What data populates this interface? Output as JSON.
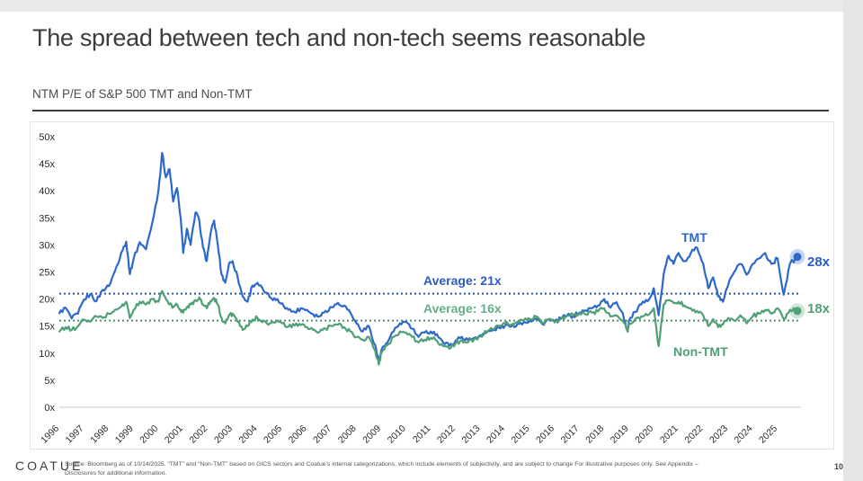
{
  "slide": {
    "title": "The spread between tech and non-tech seems reasonable",
    "subtitle": "NTM P/E of S&P 500 TMT and Non-TMT",
    "logo": "COATUE",
    "page_number": "10",
    "source_line1": "Source: Bloomberg as of 10/14/2025. “TMT” and “Non-TMT” based on GICS sectors and Coatue’s internal categorizations, which include elements of subjectivity, and are subject to change For illustrative purposes only. See Appendix –",
    "source_line2": "Disclosures for additional information."
  },
  "chart_data": {
    "type": "line",
    "title": "NTM P/E of S&P 500 TMT and Non-TMT",
    "grid": false,
    "x_axis": {
      "ticks": [
        1996,
        1997,
        1998,
        1999,
        2000,
        2001,
        2002,
        2003,
        2004,
        2005,
        2006,
        2007,
        2008,
        2009,
        2010,
        2011,
        2012,
        2013,
        2014,
        2015,
        2016,
        2017,
        2018,
        2019,
        2020,
        2021,
        2022,
        2023,
        2024,
        2025
      ],
      "min": 1996,
      "max": 2025.83
    },
    "y_axis": {
      "ticks": [
        "0x",
        "5x",
        "10x",
        "15x",
        "20x",
        "25x",
        "30x",
        "35x",
        "40x",
        "45x",
        "50x"
      ],
      "min": 0,
      "max": 50
    },
    "baseline_color": "#c9c9c9",
    "axis_text_color": "#2b2b2b",
    "series": [
      {
        "name": "TMT",
        "color": "#2e68c8",
        "avg_line_color": "#2d57b0",
        "average": 21,
        "average_label": "Average: 21x",
        "end_label": "28x",
        "points": [
          [
            1996,
            17.4
          ],
          [
            1996.25,
            18.4
          ],
          [
            1996.5,
            16.4
          ],
          [
            1996.75,
            17.3
          ],
          [
            1997,
            19.9
          ],
          [
            1997.25,
            20.9
          ],
          [
            1997.5,
            19.6
          ],
          [
            1997.75,
            21.7
          ],
          [
            1998,
            22.4
          ],
          [
            1998.25,
            25.2
          ],
          [
            1998.5,
            28.6
          ],
          [
            1998.7,
            30.6
          ],
          [
            1998.85,
            24.6
          ],
          [
            1999,
            27.5
          ],
          [
            1999.25,
            30.5
          ],
          [
            1999.5,
            29.2
          ],
          [
            1999.75,
            34
          ],
          [
            2000,
            40
          ],
          [
            2000.15,
            47
          ],
          [
            2000.3,
            42.5
          ],
          [
            2000.45,
            44
          ],
          [
            2000.6,
            38
          ],
          [
            2000.75,
            40.5
          ],
          [
            2000.9,
            35
          ],
          [
            2001,
            28.5
          ],
          [
            2001.15,
            33
          ],
          [
            2001.3,
            30
          ],
          [
            2001.5,
            36
          ],
          [
            2001.65,
            34.5
          ],
          [
            2001.8,
            29.5
          ],
          [
            2001.95,
            27
          ],
          [
            2002.1,
            32
          ],
          [
            2002.25,
            34.5
          ],
          [
            2002.4,
            30
          ],
          [
            2002.55,
            24.5
          ],
          [
            2002.7,
            23
          ],
          [
            2002.85,
            26.5
          ],
          [
            2003,
            27
          ],
          [
            2003.2,
            24
          ],
          [
            2003.4,
            20.5
          ],
          [
            2003.6,
            19.5
          ],
          [
            2003.8,
            22.5
          ],
          [
            2004,
            23
          ],
          [
            2004.25,
            21.5
          ],
          [
            2004.5,
            20.3
          ],
          [
            2004.75,
            19.8
          ],
          [
            2005,
            19.2
          ],
          [
            2005.25,
            18
          ],
          [
            2005.5,
            17.6
          ],
          [
            2005.75,
            18.3
          ],
          [
            2006,
            18
          ],
          [
            2006.25,
            17.2
          ],
          [
            2006.5,
            16.8
          ],
          [
            2006.75,
            17.8
          ],
          [
            2007,
            18.5
          ],
          [
            2007.25,
            19.3
          ],
          [
            2007.5,
            18.8
          ],
          [
            2007.75,
            17.5
          ],
          [
            2008,
            15.5
          ],
          [
            2008.25,
            14
          ],
          [
            2008.5,
            15
          ],
          [
            2008.75,
            11.5
          ],
          [
            2008.9,
            8.4
          ],
          [
            2009,
            10.5
          ],
          [
            2009.25,
            12
          ],
          [
            2009.5,
            14
          ],
          [
            2009.75,
            15.5
          ],
          [
            2010,
            15.8
          ],
          [
            2010.25,
            14.5
          ],
          [
            2010.5,
            13
          ],
          [
            2010.75,
            13.8
          ],
          [
            2011,
            14
          ],
          [
            2011.25,
            13.5
          ],
          [
            2011.5,
            12
          ],
          [
            2011.75,
            11.4
          ],
          [
            2012,
            12.3
          ],
          [
            2012.25,
            13
          ],
          [
            2012.5,
            12.4
          ],
          [
            2012.75,
            12.8
          ],
          [
            2013,
            13.3
          ],
          [
            2013.25,
            13.8
          ],
          [
            2013.5,
            14.2
          ],
          [
            2013.75,
            14.7
          ],
          [
            2014,
            15.1
          ],
          [
            2014.25,
            14.9
          ],
          [
            2014.5,
            15.4
          ],
          [
            2014.75,
            15.7
          ],
          [
            2015,
            16
          ],
          [
            2015.25,
            16.4
          ],
          [
            2015.5,
            15.4
          ],
          [
            2015.75,
            16.2
          ],
          [
            2016,
            15.7
          ],
          [
            2016.25,
            16.4
          ],
          [
            2016.5,
            17
          ],
          [
            2016.75,
            16.8
          ],
          [
            2017,
            17.5
          ],
          [
            2017.25,
            17.9
          ],
          [
            2017.5,
            18.3
          ],
          [
            2017.75,
            18.8
          ],
          [
            2018,
            20
          ],
          [
            2018.25,
            18.4
          ],
          [
            2018.5,
            19.4
          ],
          [
            2018.75,
            17.4
          ],
          [
            2018.95,
            14
          ],
          [
            2019,
            16
          ],
          [
            2019.25,
            17.6
          ],
          [
            2019.5,
            19
          ],
          [
            2019.75,
            19.6
          ],
          [
            2020,
            22
          ],
          [
            2020.2,
            17
          ],
          [
            2020.4,
            24.5
          ],
          [
            2020.6,
            28
          ],
          [
            2020.8,
            26.5
          ],
          [
            2021,
            28.5
          ],
          [
            2021.25,
            27
          ],
          [
            2021.5,
            28.5
          ],
          [
            2021.75,
            29.5
          ],
          [
            2022,
            26.5
          ],
          [
            2022.2,
            22
          ],
          [
            2022.4,
            24
          ],
          [
            2022.6,
            20.5
          ],
          [
            2022.8,
            19.5
          ],
          [
            2023,
            22.5
          ],
          [
            2023.25,
            25
          ],
          [
            2023.5,
            26.5
          ],
          [
            2023.75,
            24.5
          ],
          [
            2024,
            26.5
          ],
          [
            2024.25,
            27.5
          ],
          [
            2024.5,
            28.5
          ],
          [
            2024.75,
            26.5
          ],
          [
            2025,
            27.5
          ],
          [
            2025.25,
            20.8
          ],
          [
            2025.5,
            26.5
          ],
          [
            2025.8,
            27.8
          ]
        ]
      },
      {
        "name": "Non-TMT",
        "color": "#4fa076",
        "avg_line_color": "#568f6d",
        "average": 16,
        "average_label": "Average: 16x",
        "end_label": "18x",
        "points": [
          [
            1996,
            14
          ],
          [
            1996.25,
            14.8
          ],
          [
            1996.5,
            14.3
          ],
          [
            1996.75,
            15
          ],
          [
            1997,
            16.2
          ],
          [
            1997.25,
            15.8
          ],
          [
            1997.5,
            16.8
          ],
          [
            1997.75,
            16.5
          ],
          [
            1998,
            17.3
          ],
          [
            1998.25,
            18
          ],
          [
            1998.5,
            18.6
          ],
          [
            1998.7,
            19.5
          ],
          [
            1998.85,
            16.5
          ],
          [
            1999,
            18
          ],
          [
            1999.25,
            19.5
          ],
          [
            1999.5,
            19
          ],
          [
            1999.75,
            20
          ],
          [
            2000,
            19.5
          ],
          [
            2000.15,
            21.5
          ],
          [
            2000.3,
            20
          ],
          [
            2000.45,
            19
          ],
          [
            2000.6,
            18.5
          ],
          [
            2000.75,
            19
          ],
          [
            2000.9,
            18
          ],
          [
            2001,
            17.5
          ],
          [
            2001.15,
            18.5
          ],
          [
            2001.3,
            19
          ],
          [
            2001.5,
            19.8
          ],
          [
            2001.65,
            20.3
          ],
          [
            2001.8,
            19
          ],
          [
            2001.95,
            18.3
          ],
          [
            2002.1,
            19.6
          ],
          [
            2002.25,
            20.2
          ],
          [
            2002.4,
            19
          ],
          [
            2002.55,
            16.5
          ],
          [
            2002.7,
            15.5
          ],
          [
            2002.85,
            17
          ],
          [
            2003,
            17.3
          ],
          [
            2003.2,
            15.8
          ],
          [
            2003.4,
            14.3
          ],
          [
            2003.6,
            15
          ],
          [
            2003.8,
            16.2
          ],
          [
            2004,
            16.5
          ],
          [
            2004.25,
            16
          ],
          [
            2004.5,
            15.5
          ],
          [
            2004.75,
            15.8
          ],
          [
            2005,
            15.5
          ],
          [
            2005.25,
            14.9
          ],
          [
            2005.5,
            15.1
          ],
          [
            2005.75,
            15.2
          ],
          [
            2006,
            14.8
          ],
          [
            2006.25,
            14.3
          ],
          [
            2006.5,
            13.9
          ],
          [
            2006.75,
            14.5
          ],
          [
            2007,
            15
          ],
          [
            2007.25,
            15.3
          ],
          [
            2007.5,
            14.8
          ],
          [
            2007.75,
            14
          ],
          [
            2008,
            13
          ],
          [
            2008.25,
            12.5
          ],
          [
            2008.5,
            13
          ],
          [
            2008.75,
            10.5
          ],
          [
            2008.9,
            7.9
          ],
          [
            2009,
            10
          ],
          [
            2009.25,
            11.5
          ],
          [
            2009.5,
            13
          ],
          [
            2009.75,
            14
          ],
          [
            2010,
            13.8
          ],
          [
            2010.25,
            13
          ],
          [
            2010.5,
            12
          ],
          [
            2010.75,
            12.5
          ],
          [
            2011,
            12.8
          ],
          [
            2011.25,
            12.3
          ],
          [
            2011.5,
            11.3
          ],
          [
            2011.75,
            10.8
          ],
          [
            2012,
            11.8
          ],
          [
            2012.25,
            12.4
          ],
          [
            2012.5,
            12
          ],
          [
            2012.75,
            12.6
          ],
          [
            2013,
            13.1
          ],
          [
            2013.25,
            13.9
          ],
          [
            2013.5,
            14.4
          ],
          [
            2013.75,
            15
          ],
          [
            2014,
            15.5
          ],
          [
            2014.25,
            15.3
          ],
          [
            2014.5,
            15.8
          ],
          [
            2014.75,
            16
          ],
          [
            2015,
            16.3
          ],
          [
            2015.25,
            16.8
          ],
          [
            2015.5,
            15.6
          ],
          [
            2015.75,
            16.3
          ],
          [
            2016,
            15.8
          ],
          [
            2016.25,
            16.3
          ],
          [
            2016.5,
            16.9
          ],
          [
            2016.75,
            17
          ],
          [
            2017,
            17.4
          ],
          [
            2017.25,
            17.2
          ],
          [
            2017.5,
            17.5
          ],
          [
            2017.75,
            17.7
          ],
          [
            2018,
            18.3
          ],
          [
            2018.25,
            16.8
          ],
          [
            2018.5,
            17
          ],
          [
            2018.75,
            16
          ],
          [
            2018.95,
            14.2
          ],
          [
            2019,
            15.5
          ],
          [
            2019.25,
            16.3
          ],
          [
            2019.5,
            16.8
          ],
          [
            2019.75,
            17
          ],
          [
            2020,
            18.3
          ],
          [
            2020.2,
            11.3
          ],
          [
            2020.4,
            19
          ],
          [
            2020.6,
            19.8
          ],
          [
            2020.8,
            19.3
          ],
          [
            2021,
            19.5
          ],
          [
            2021.25,
            18.8
          ],
          [
            2021.5,
            18.3
          ],
          [
            2021.75,
            17.8
          ],
          [
            2022,
            17
          ],
          [
            2022.2,
            15
          ],
          [
            2022.4,
            16.3
          ],
          [
            2022.6,
            14.8
          ],
          [
            2022.8,
            15.3
          ],
          [
            2023,
            16.5
          ],
          [
            2023.25,
            16
          ],
          [
            2023.5,
            17
          ],
          [
            2023.75,
            15.5
          ],
          [
            2024,
            16.8
          ],
          [
            2024.25,
            17.3
          ],
          [
            2024.5,
            18
          ],
          [
            2024.75,
            17.3
          ],
          [
            2025,
            18.3
          ],
          [
            2025.25,
            16.3
          ],
          [
            2025.5,
            18
          ],
          [
            2025.8,
            17.8
          ]
        ]
      }
    ]
  }
}
